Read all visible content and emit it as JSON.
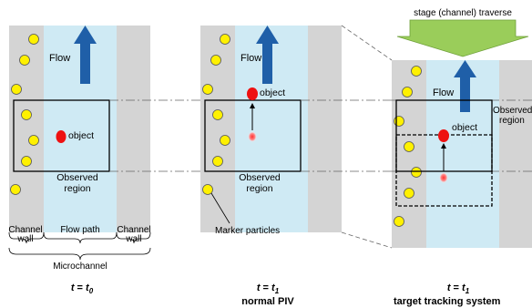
{
  "panel1": {
    "flow": "Flow",
    "object": "object",
    "observed_line1": "Observed",
    "observed_line2": "region",
    "channel_wall_left_1": "Channel",
    "channel_wall_left_2": "wall",
    "flow_path": "Flow path",
    "channel_wall_right_1": "Channel",
    "channel_wall_right_2": "wall",
    "microchannel": "Microchannel",
    "time_t": "t",
    "time_eq": " = ",
    "time_sub": "0"
  },
  "panel2": {
    "flow": "Flow",
    "object": "object",
    "observed_line1": "Observed",
    "observed_line2": "region",
    "marker_particles": "Marker particles",
    "time_t": "t",
    "time_eq": " = ",
    "time_sub": "1",
    "caption": "normal PIV"
  },
  "panel3": {
    "stage_label": "stage (channel) traverse",
    "flow": "Flow",
    "object": "object",
    "observed_line1": "Observed",
    "observed_line2": "region",
    "time_t": "t",
    "time_eq": " = ",
    "time_sub": "1",
    "caption": "target tracking system"
  },
  "colors": {
    "wall": "#d4d4d4",
    "flow_path": "#cfeaf4",
    "arrow_blue": "#1f5fa8",
    "particle_yellow": "#fff100",
    "object_red": "#ee1111",
    "stage_arrow_green": "#9acd5a"
  }
}
